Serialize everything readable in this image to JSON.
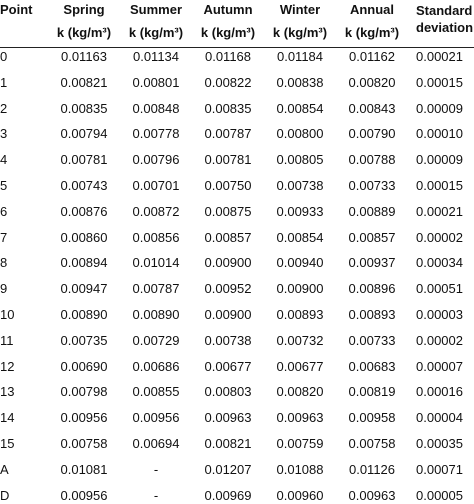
{
  "table": {
    "header": [
      "Point",
      "Spring",
      "Summer",
      "Autumn",
      "Winter",
      "Annual",
      "Standard deviation"
    ],
    "units": [
      "k (kg/m³)",
      "k (kg/m³)",
      "k (kg/m³)",
      "k (kg/m³)",
      "k (kg/m³)"
    ],
    "rows": [
      [
        "0",
        "0.01163",
        "0.01134",
        "0.01168",
        "0.01184",
        "0.01162",
        "0.00021"
      ],
      [
        "1",
        "0.00821",
        "0.00801",
        "0.00822",
        "0.00838",
        "0.00820",
        "0.00015"
      ],
      [
        "2",
        "0.00835",
        "0.00848",
        "0.00835",
        "0.00854",
        "0.00843",
        "0.00009"
      ],
      [
        "3",
        "0.00794",
        "0.00778",
        "0.00787",
        "0.00800",
        "0.00790",
        "0.00010"
      ],
      [
        "4",
        "0.00781",
        "0.00796",
        "0.00781",
        "0.00805",
        "0.00788",
        "0.00009"
      ],
      [
        "5",
        "0.00743",
        "0.00701",
        "0.00750",
        "0.00738",
        "0.00733",
        "0.00015"
      ],
      [
        "6",
        "0.00876",
        "0.00872",
        "0.00875",
        "0.00933",
        "0.00889",
        "0.00021"
      ],
      [
        "7",
        "0.00860",
        "0.00856",
        "0.00857",
        "0.00854",
        "0.00857",
        "0.00002"
      ],
      [
        "8",
        "0.00894",
        "0.01014",
        "0.00900",
        "0.00940",
        "0.00937",
        "0.00034"
      ],
      [
        "9",
        "0.00947",
        "0.00787",
        "0.00952",
        "0.00900",
        "0.00896",
        "0.00051"
      ],
      [
        "10",
        "0.00890",
        "0.00890",
        "0.00900",
        "0.00893",
        "0.00893",
        "0.00003"
      ],
      [
        "11",
        "0.00735",
        "0.00729",
        "0.00738",
        "0.00732",
        "0.00733",
        "0.00002"
      ],
      [
        "12",
        "0.00690",
        "0.00686",
        "0.00677",
        "0.00677",
        "0.00683",
        "0.00007"
      ],
      [
        "13",
        "0.00798",
        "0.00855",
        "0.00803",
        "0.00820",
        "0.00819",
        "0.00016"
      ],
      [
        "14",
        "0.00956",
        "0.00956",
        "0.00963",
        "0.00963",
        "0.00958",
        "0.00004"
      ],
      [
        "15",
        "0.00758",
        "0.00694",
        "0.00821",
        "0.00759",
        "0.00758",
        "0.00035"
      ],
      [
        "A",
        "0.01081",
        "-",
        "0.01207",
        "0.01088",
        "0.01126",
        "0.00071"
      ],
      [
        "D",
        "0.00956",
        "-",
        "0.00969",
        "0.00960",
        "0.00963",
        "0.00005"
      ]
    ]
  }
}
